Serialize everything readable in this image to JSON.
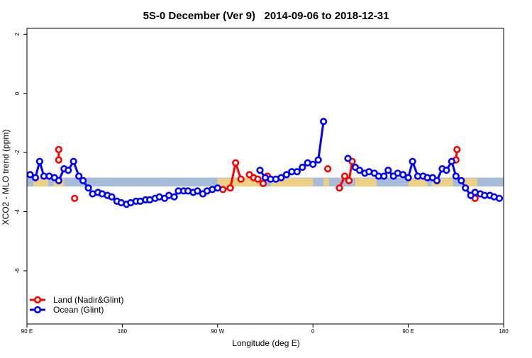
{
  "chart_data": {
    "type": "line",
    "title": "5S-0 December (Ver 9)   2014-09-06 to 2018-12-31",
    "xlabel": "Longitude (deg E)",
    "ylabel": "XCO2 - MLO trend (ppm)",
    "xlim": [
      90,
      540
    ],
    "ylim": [
      -7.8,
      2.2
    ],
    "x_ticks": [
      {
        "value": 90,
        "label": "90 E"
      },
      {
        "value": 180,
        "label": "180"
      },
      {
        "value": 270,
        "label": "90 W"
      },
      {
        "value": 360,
        "label": "0"
      },
      {
        "value": 450,
        "label": "90 E"
      },
      {
        "value": 540,
        "label": "180"
      }
    ],
    "y_ticks": [
      {
        "value": 2,
        "label": "2"
      },
      {
        "value": 0,
        "label": "0"
      },
      {
        "value": -2,
        "label": "-2"
      },
      {
        "value": -4,
        "label": "-4"
      },
      {
        "value": -6,
        "label": "-6"
      }
    ],
    "reference_band": {
      "ymin": -3.15,
      "ymax": -2.85,
      "color": "#a7bcd8"
    },
    "land_mask_color": "#f6d27a",
    "land_segments": [
      [
        96,
        110
      ],
      [
        115,
        125
      ],
      [
        270,
        315
      ],
      [
        320,
        360
      ],
      [
        370,
        375
      ],
      [
        400,
        420
      ],
      [
        450,
        468
      ],
      [
        472,
        492
      ],
      [
        500,
        515
      ]
    ],
    "legend": {
      "position": "bottom-left"
    },
    "series": [
      {
        "name": "Land (Nadir&Glint)",
        "color": "#ff0000",
        "segments": [
          [
            [
              120,
              -2.25
            ],
            [
              120,
              -1.9
            ]
          ],
          [
            [
              135,
              -3.55
            ]
          ],
          [
            [
              275,
              -3.25
            ],
            [
              282,
              -3.2
            ],
            [
              287,
              -2.35
            ],
            [
              292,
              -2.9
            ]
          ],
          [
            [
              300,
              -2.75
            ],
            [
              304,
              -2.85
            ],
            [
              308,
              -2.9
            ],
            [
              313,
              -3.05
            ],
            [
              317,
              -2.8
            ]
          ],
          [
            [
              374,
              -2.55
            ]
          ],
          [
            [
              385,
              -3.2
            ],
            [
              390,
              -2.8
            ],
            [
              394,
              -2.95
            ],
            [
              397,
              -2.3
            ]
          ],
          [
            [
              495,
              -2.25
            ],
            [
              496,
              -1.9
            ]
          ],
          [
            [
              513,
              -3.55
            ]
          ]
        ]
      },
      {
        "name": "Ocean (Glint)",
        "color": "#0000ff",
        "segments": [
          [
            [
              93,
              -2.75
            ],
            [
              98,
              -2.85
            ],
            [
              102,
              -2.3
            ],
            [
              106,
              -2.8
            ],
            [
              111,
              -2.8
            ],
            [
              116,
              -2.85
            ],
            [
              120,
              -2.95
            ],
            [
              125,
              -2.55
            ],
            [
              129,
              -2.6
            ],
            [
              134,
              -2.3
            ],
            [
              139,
              -2.8
            ],
            [
              143,
              -2.95
            ],
            [
              148,
              -3.2
            ],
            [
              152,
              -3.4
            ],
            [
              157,
              -3.35
            ],
            [
              161,
              -3.4
            ],
            [
              166,
              -3.45
            ],
            [
              170,
              -3.5
            ],
            [
              175,
              -3.65
            ],
            [
              179,
              -3.7
            ],
            [
              184,
              -3.75
            ],
            [
              188,
              -3.7
            ],
            [
              193,
              -3.65
            ],
            [
              197,
              -3.65
            ],
            [
              202,
              -3.6
            ],
            [
              206,
              -3.6
            ],
            [
              211,
              -3.55
            ],
            [
              215,
              -3.5
            ],
            [
              220,
              -3.55
            ],
            [
              224,
              -3.45
            ],
            [
              229,
              -3.5
            ],
            [
              233,
              -3.3
            ],
            [
              238,
              -3.3
            ],
            [
              242,
              -3.3
            ],
            [
              247,
              -3.35
            ],
            [
              251,
              -3.3
            ],
            [
              256,
              -3.4
            ],
            [
              260,
              -3.3
            ],
            [
              265,
              -3.25
            ],
            [
              270,
              -3.2
            ]
          ],
          [
            [
              310,
              -2.6
            ],
            [
              315,
              -2.85
            ],
            [
              320,
              -2.9
            ],
            [
              325,
              -2.9
            ],
            [
              330,
              -2.85
            ],
            [
              335,
              -2.75
            ],
            [
              340,
              -2.65
            ],
            [
              345,
              -2.65
            ],
            [
              350,
              -2.5
            ],
            [
              355,
              -2.35
            ],
            [
              360,
              -2.4
            ],
            [
              365,
              -2.25
            ],
            [
              370,
              -0.95
            ]
          ],
          [
            [
              393,
              -2.2
            ]
          ],
          [
            [
              400,
              -2.5
            ],
            [
              404,
              -2.6
            ],
            [
              409,
              -2.7
            ],
            [
              413,
              -2.65
            ],
            [
              418,
              -2.7
            ],
            [
              422,
              -2.8
            ],
            [
              427,
              -2.8
            ],
            [
              431,
              -2.6
            ],
            [
              436,
              -2.8
            ],
            [
              440,
              -2.7
            ],
            [
              445,
              -2.75
            ],
            [
              450,
              -2.85
            ],
            [
              454,
              -2.3
            ],
            [
              459,
              -2.8
            ],
            [
              464,
              -2.8
            ],
            [
              468,
              -2.85
            ],
            [
              473,
              -2.85
            ],
            [
              477,
              -2.95
            ],
            [
              482,
              -2.55
            ],
            [
              486,
              -2.6
            ],
            [
              491,
              -2.3
            ],
            [
              495,
              -2.8
            ],
            [
              500,
              -2.95
            ],
            [
              504,
              -3.2
            ],
            [
              509,
              -3.45
            ],
            [
              513,
              -3.35
            ],
            [
              518,
              -3.4
            ],
            [
              522,
              -3.45
            ],
            [
              527,
              -3.45
            ],
            [
              531,
              -3.5
            ],
            [
              536,
              -3.55
            ]
          ]
        ]
      }
    ]
  }
}
